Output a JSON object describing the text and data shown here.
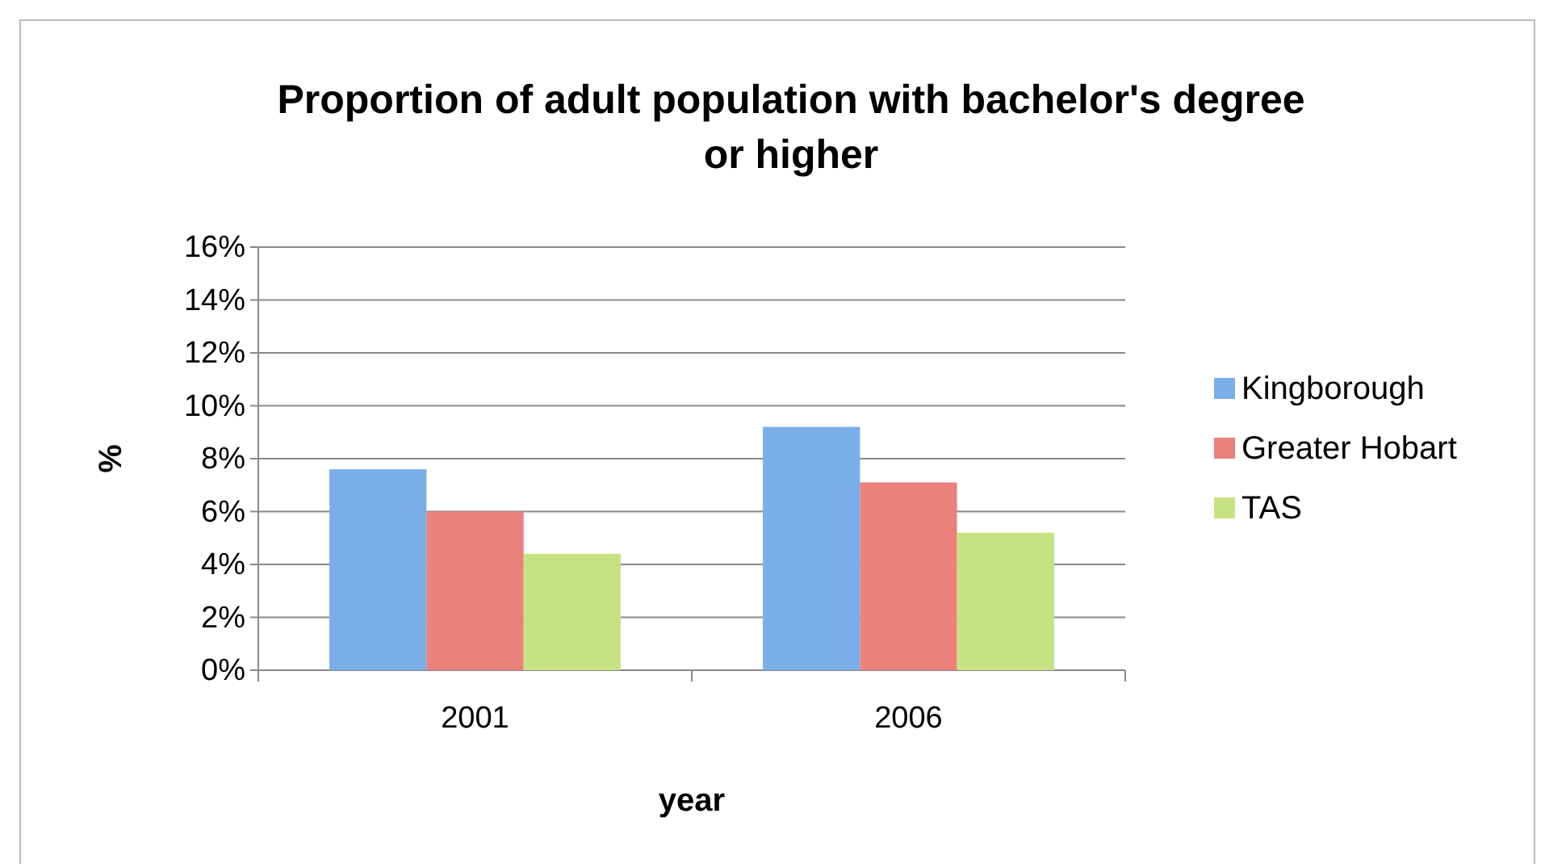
{
  "chart_data": {
    "type": "bar",
    "title": "Proportion of adult population with bachelor's degree or higher",
    "xlabel": "year",
    "ylabel": "%",
    "categories": [
      "2001",
      "2006"
    ],
    "series": [
      {
        "name": "Kingborough",
        "color": "#79aee8",
        "values": [
          7.6,
          9.2
        ]
      },
      {
        "name": "Greater Hobart",
        "color": "#ea817b",
        "values": [
          6.0,
          7.1
        ]
      },
      {
        "name": "TAS",
        "color": "#c6e384",
        "values": [
          4.4,
          5.2
        ]
      }
    ],
    "ylim": [
      0,
      16
    ],
    "yticks": [
      {
        "value": 0,
        "label": "0%"
      },
      {
        "value": 2,
        "label": "2%"
      },
      {
        "value": 4,
        "label": "4%"
      },
      {
        "value": 6,
        "label": "6%"
      },
      {
        "value": 8,
        "label": "8%"
      },
      {
        "value": 10,
        "label": "10%"
      },
      {
        "value": 12,
        "label": "12%"
      },
      {
        "value": 14,
        "label": "14%"
      },
      {
        "value": 16,
        "label": "16%"
      }
    ],
    "grid": "y",
    "legend": "right"
  }
}
